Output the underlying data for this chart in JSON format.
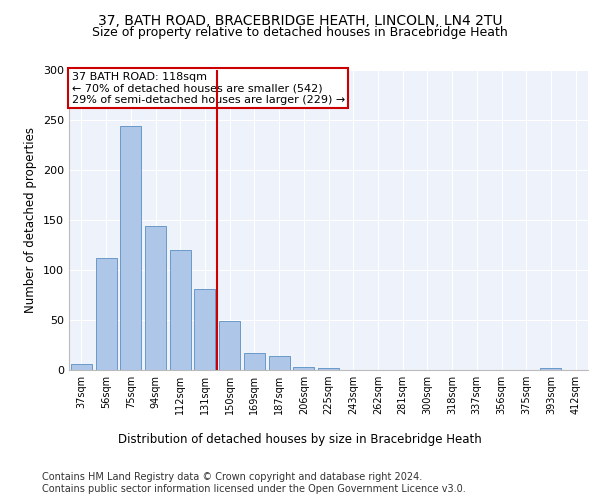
{
  "title1": "37, BATH ROAD, BRACEBRIDGE HEATH, LINCOLN, LN4 2TU",
  "title2": "Size of property relative to detached houses in Bracebridge Heath",
  "xlabel": "Distribution of detached houses by size in Bracebridge Heath",
  "ylabel": "Number of detached properties",
  "footnote1": "Contains HM Land Registry data © Crown copyright and database right 2024.",
  "footnote2": "Contains public sector information licensed under the Open Government Licence v3.0.",
  "annotation_line1": "37 BATH ROAD: 118sqm",
  "annotation_line2": "← 70% of detached houses are smaller (542)",
  "annotation_line3": "29% of semi-detached houses are larger (229) →",
  "bar_color": "#aec6e8",
  "bar_edge_color": "#5a8fc2",
  "vline_color": "#cc0000",
  "annotation_box_color": "#cc0000",
  "background_color": "#eef2fb",
  "categories": [
    "37sqm",
    "56sqm",
    "75sqm",
    "94sqm",
    "112sqm",
    "131sqm",
    "150sqm",
    "169sqm",
    "187sqm",
    "206sqm",
    "225sqm",
    "243sqm",
    "262sqm",
    "281sqm",
    "300sqm",
    "318sqm",
    "337sqm",
    "356sqm",
    "375sqm",
    "393sqm",
    "412sqm"
  ],
  "values": [
    6,
    112,
    244,
    144,
    120,
    81,
    49,
    17,
    14,
    3,
    2,
    0,
    0,
    0,
    0,
    0,
    0,
    0,
    0,
    2,
    0
  ],
  "ylim": [
    0,
    300
  ],
  "yticks": [
    0,
    50,
    100,
    150,
    200,
    250,
    300
  ],
  "vline_position": 5.5,
  "title1_fontsize": 10,
  "title2_fontsize": 9,
  "xlabel_fontsize": 8.5,
  "ylabel_fontsize": 8.5,
  "footnote_fontsize": 7,
  "annot_fontsize": 8
}
